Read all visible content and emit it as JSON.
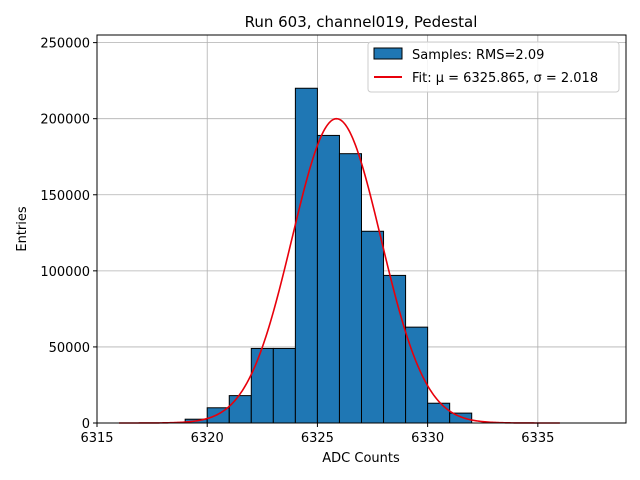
{
  "chart_data": {
    "type": "bar",
    "title": "Run 603, channel019, Pedestal",
    "xlabel": "ADC Counts",
    "ylabel": "Entries",
    "xlim": [
      6315,
      6339
    ],
    "ylim": [
      0,
      255000
    ],
    "xticks": [
      6315,
      6320,
      6325,
      6330,
      6335
    ],
    "yticks": [
      0,
      50000,
      100000,
      150000,
      200000,
      250000
    ],
    "grid": true,
    "legend_position": "top-right",
    "bin_width": 1,
    "colors": {
      "bars": "#1f77b4",
      "bar_edge": "#000000",
      "fit": "#e8000b",
      "grid": "#b0b0b0"
    },
    "series": [
      {
        "name": "Samples: RMS=2.09",
        "kind": "histogram",
        "bin_edges": [
          6319,
          6320,
          6321,
          6322,
          6323,
          6324,
          6325,
          6326,
          6327,
          6328,
          6329,
          6330,
          6331,
          6332
        ],
        "values": [
          2500,
          10000,
          18000,
          49000,
          49000,
          220000,
          189000,
          177000,
          126000,
          97000,
          63000,
          13000,
          6500
        ]
      },
      {
        "name": "Fit: μ = 6325.865, σ = 2.018",
        "kind": "gaussian",
        "mu": 6325.865,
        "sigma": 2.018,
        "amplitude": 200000,
        "x_range": [
          6316,
          6336
        ]
      }
    ]
  }
}
